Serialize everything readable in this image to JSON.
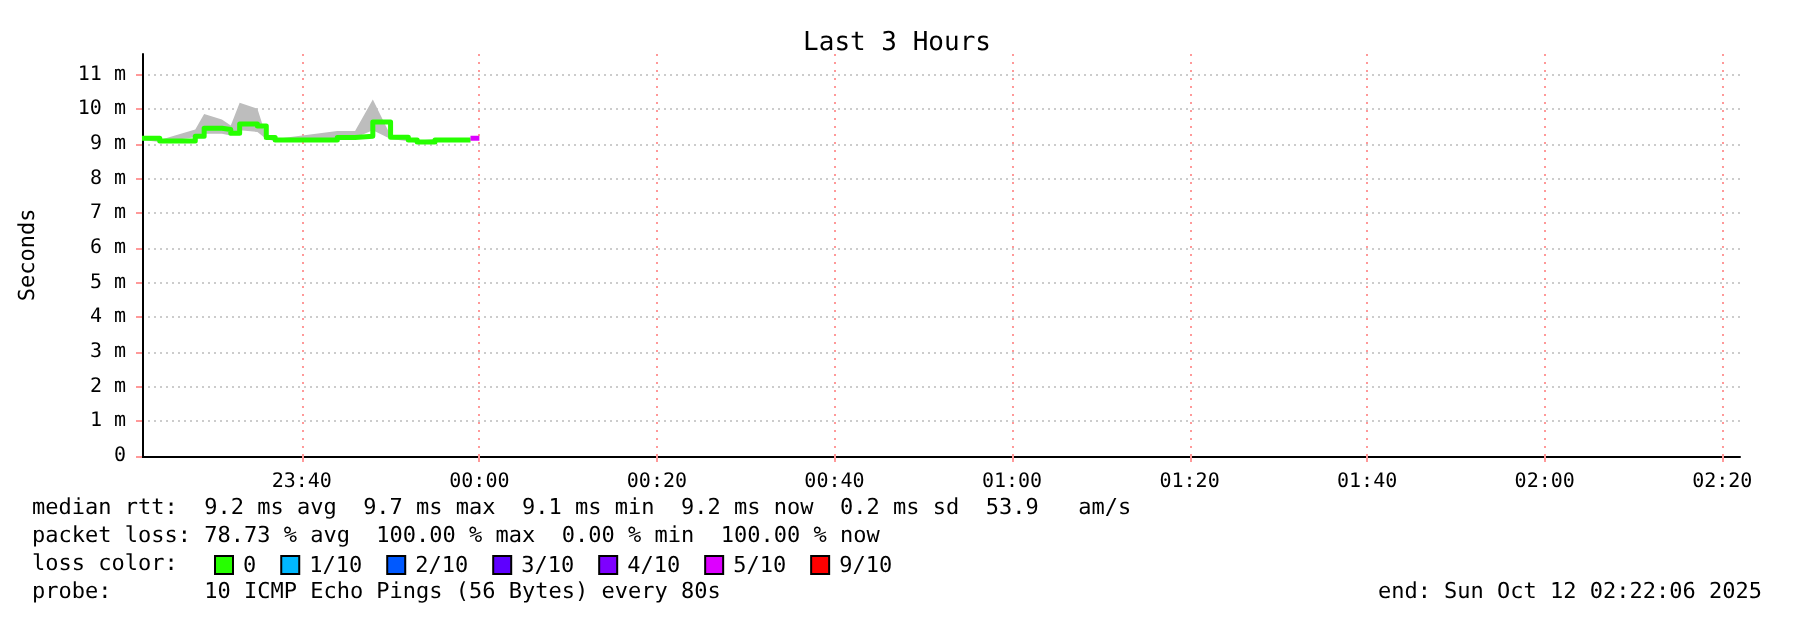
{
  "chart_data": {
    "type": "step",
    "title": "Last 3 Hours",
    "ylabel": "Seconds",
    "legend_title": "loss color:",
    "annotations": [
      "median rtt:  9.2 ms avg  9.7 ms max  9.1 ms min  9.2 ms now  0.2 ms sd  53.9   am/s",
      "packet loss: 78.73 % avg  100.00 % max  0.00 % min  100.00 % now",
      "probe:       10 ICMP Echo Pings (56 Bytes) every 80s",
      "end: Sun Oct 12 02:22:06 2025"
    ],
    "xlim": [
      "2025-10-11T23:22",
      "2025-10-12T02:22"
    ],
    "xticks": [
      {
        "value": "2025-10-11T23:40",
        "label": "23:40"
      },
      {
        "value": "2025-10-12T00:00",
        "label": "00:00"
      },
      {
        "value": "2025-10-12T00:20",
        "label": "00:20"
      },
      {
        "value": "2025-10-12T00:40",
        "label": "00:40"
      },
      {
        "value": "2025-10-12T01:00",
        "label": "01:00"
      },
      {
        "value": "2025-10-12T01:20",
        "label": "01:20"
      },
      {
        "value": "2025-10-12T01:40",
        "label": "01:40"
      },
      {
        "value": "2025-10-12T02:00",
        "label": "02:00"
      },
      {
        "value": "2025-10-12T02:20",
        "label": "02:20"
      }
    ],
    "ylim": [
      0,
      11.6
    ],
    "yticks": [
      0,
      {
        "value": 1,
        "label": "1 m"
      },
      {
        "value": 2,
        "label": "2 m"
      },
      {
        "value": 3,
        "label": "3 m"
      },
      {
        "value": 4,
        "label": "4 m"
      },
      {
        "value": 5,
        "label": "5 m"
      },
      {
        "value": 6,
        "label": "6 m"
      },
      {
        "value": 7,
        "label": "7 m"
      },
      {
        "value": 8,
        "label": "8 m"
      },
      {
        "value": 9,
        "label": "9 m"
      },
      {
        "value": 10,
        "label": "10 m"
      },
      {
        "value": 11,
        "label": "11 m"
      }
    ],
    "grid": true,
    "legend": "bottom left",
    "marker": "none",
    "line_style": "solid",
    "series": [
      {
        "name": "0",
        "color": "#26ff00",
        "x": [
          "2025-10-11T23:22",
          "2025-10-11T23:24",
          "2025-10-11T23:28",
          "2025-10-11T23:29",
          "2025-10-11T23:31",
          "2025-10-11T23:32",
          "2025-10-11T23:33",
          "2025-10-11T23:35",
          "2025-10-11T23:36",
          "2025-10-11T23:37",
          "2025-10-11T23:44",
          "2025-10-11T23:46",
          "2025-10-11T23:48",
          "2025-10-11T23:50",
          "2025-10-11T23:52",
          "2025-10-11T23:53",
          "2025-10-11T23:55",
          "2025-10-11T23:59"
        ],
        "values": [
          9.17,
          9.09,
          9.23,
          9.46,
          9.42,
          9.31,
          9.58,
          9.52,
          9.19,
          9.12,
          9.19,
          9.23,
          9.64,
          9.2,
          9.12,
          9.06,
          9.12,
          9.12
        ],
        "upper": [
          9.22,
          9.12,
          9.42,
          9.87,
          9.71,
          9.54,
          10.19,
          10.02,
          9.22,
          9.15,
          9.38,
          9.38,
          10.29,
          9.25,
          9.15,
          9.1,
          9.15,
          9.15
        ],
        "lower": [
          9.12,
          9.06,
          9.2,
          9.3,
          9.3,
          9.25,
          9.4,
          9.35,
          9.15,
          9.08,
          9.15,
          9.18,
          9.4,
          9.15,
          9.08,
          9.03,
          9.08,
          9.08
        ]
      },
      {
        "name": "1/10",
        "color": "#00b8ff"
      },
      {
        "name": "2/10",
        "color": "#0059ff"
      },
      {
        "name": "3/10",
        "color": "#5e00ff"
      },
      {
        "name": "4/10",
        "color": "#7e00ff"
      },
      {
        "name": "5/10",
        "color": "#dd00ff",
        "x": [
          "2025-10-11T23:59",
          "2025-10-12T00:00"
        ],
        "values": [
          9.17,
          9.17
        ]
      },
      {
        "name": "9/10",
        "color": "#ff0000"
      }
    ]
  }
}
